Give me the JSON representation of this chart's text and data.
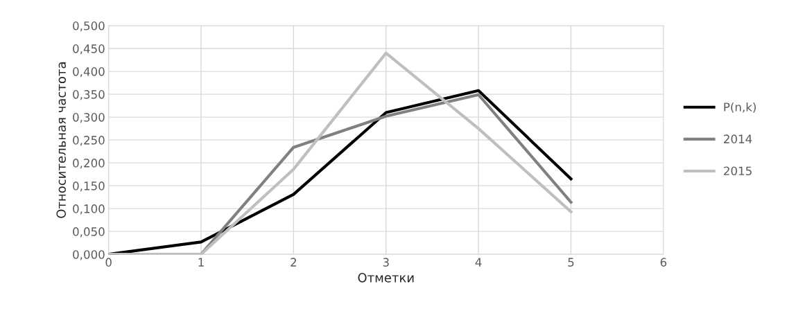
{
  "chart_data": {
    "type": "line",
    "xlabel": "Отметки",
    "ylabel": "Относительная частота",
    "x": [
      0,
      1,
      2,
      3,
      4,
      5
    ],
    "series": [
      {
        "name": "P(n,k)",
        "color": "#000000",
        "values": [
          0,
          0.027,
          0.131,
          0.31,
          0.358,
          0.165
        ]
      },
      {
        "name": "2014",
        "color": "#808080",
        "values": [
          0,
          0,
          0.234,
          0.302,
          0.349,
          0.114
        ]
      },
      {
        "name": "2015",
        "color": "#bfbfbf",
        "values": [
          0,
          0,
          0.186,
          0.44,
          0.275,
          0.093
        ]
      }
    ],
    "xlim": [
      0,
      6
    ],
    "xticks": [
      0,
      1,
      2,
      3,
      4,
      5,
      6
    ],
    "ylim": [
      0,
      0.5
    ],
    "yticks": [
      {
        "value": 0,
        "label": "0,000"
      },
      {
        "value": 0.05,
        "label": "0,050"
      },
      {
        "value": 0.1,
        "label": "0,100"
      },
      {
        "value": 0.15,
        "label": "0,150"
      },
      {
        "value": 0.2,
        "label": "0,200"
      },
      {
        "value": 0.25,
        "label": "0,250"
      },
      {
        "value": 0.3,
        "label": "0,300"
      },
      {
        "value": 0.35,
        "label": "0,350"
      },
      {
        "value": 0.4,
        "label": "0,400"
      },
      {
        "value": 0.45,
        "label": "0,450"
      },
      {
        "value": 0.5,
        "label": "0,500"
      }
    ],
    "grid": true,
    "legend": "right",
    "marker": "none",
    "line_style": "solid"
  }
}
